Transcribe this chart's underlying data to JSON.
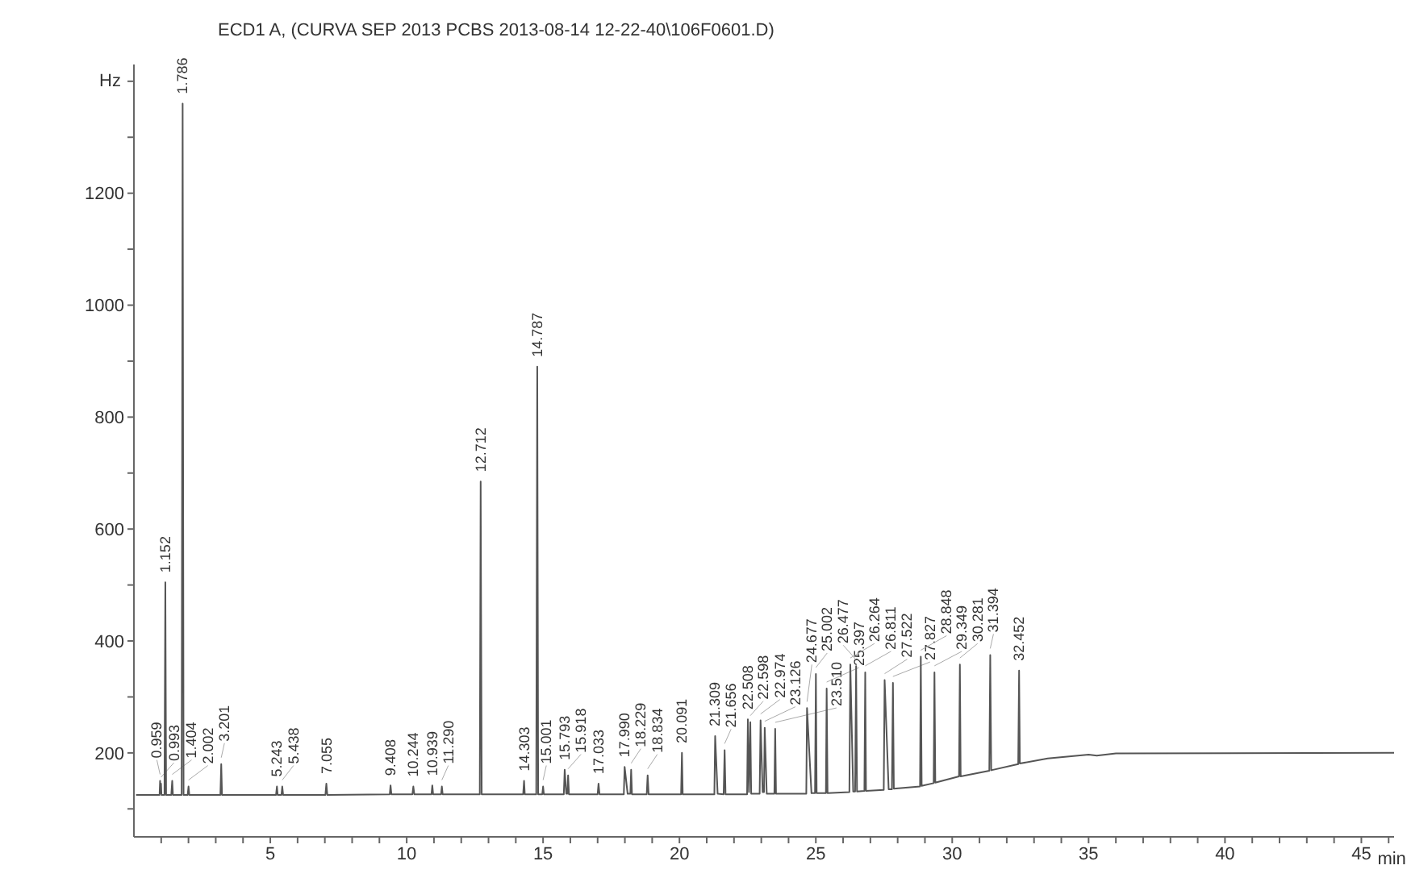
{
  "chart_data": {
    "type": "line",
    "title": "ECD1 A,  (CURVA SEP 2013 PCBS 2013-08-14 12-22-40\\106F0601.D)",
    "xlabel": "min",
    "ylabel": "Hz",
    "color": "#555555",
    "marker": "none",
    "line_style": "solid",
    "xlim": [
      0,
      46.2
    ],
    "ylim": [
      50,
      1430
    ],
    "xticks": [
      {
        "value": 1,
        "label": null
      },
      {
        "value": 2,
        "label": null
      },
      {
        "value": 3,
        "label": null
      },
      {
        "value": 4,
        "label": null
      },
      5,
      {
        "value": 6,
        "label": null
      },
      {
        "value": 7,
        "label": null
      },
      {
        "value": 8,
        "label": null
      },
      {
        "value": 9,
        "label": null
      },
      10,
      {
        "value": 11,
        "label": null
      },
      {
        "value": 12,
        "label": null
      },
      {
        "value": 13,
        "label": null
      },
      {
        "value": 14,
        "label": null
      },
      15,
      {
        "value": 16,
        "label": null
      },
      {
        "value": 17,
        "label": null
      },
      {
        "value": 18,
        "label": null
      },
      {
        "value": 19,
        "label": null
      },
      20,
      {
        "value": 21,
        "label": null
      },
      {
        "value": 22,
        "label": null
      },
      {
        "value": 23,
        "label": null
      },
      {
        "value": 24,
        "label": null
      },
      25,
      {
        "value": 26,
        "label": null
      },
      {
        "value": 27,
        "label": null
      },
      {
        "value": 28,
        "label": null
      },
      {
        "value": 29,
        "label": null
      },
      30,
      {
        "value": 31,
        "label": null
      },
      {
        "value": 32,
        "label": null
      },
      {
        "value": 33,
        "label": null
      },
      {
        "value": 34,
        "label": null
      },
      35,
      {
        "value": 36,
        "label": null
      },
      {
        "value": 37,
        "label": null
      },
      {
        "value": 38,
        "label": null
      },
      {
        "value": 39,
        "label": null
      },
      40,
      {
        "value": 41,
        "label": null
      },
      {
        "value": 42,
        "label": null
      },
      {
        "value": 43,
        "label": null
      },
      {
        "value": 44,
        "label": null
      },
      45,
      {
        "value": 46,
        "label": null
      }
    ],
    "yticks": [
      {
        "value": 100,
        "label": null
      },
      200,
      {
        "value": 300,
        "label": null
      },
      400,
      {
        "value": 500,
        "label": null
      },
      600,
      {
        "value": 700,
        "label": null
      },
      800,
      {
        "value": 900,
        "label": null
      },
      1000,
      {
        "value": 1100,
        "label": null
      },
      1200,
      {
        "value": 1300,
        "label": null
      },
      {
        "value": 1400,
        "label": null
      }
    ],
    "x": [
      0.1,
      0.94,
      0.959,
      0.976,
      0.993,
      1.01,
      1.12,
      1.152,
      1.18,
      1.37,
      1.404,
      1.43,
      1.75,
      1.786,
      1.82,
      1.97,
      2.002,
      2.03,
      3.17,
      3.201,
      3.23,
      5.21,
      5.243,
      5.27,
      5.41,
      5.438,
      5.47,
      7.02,
      7.055,
      7.09,
      9.38,
      9.408,
      9.44,
      10.21,
      10.244,
      10.28,
      10.91,
      10.939,
      10.97,
      11.26,
      11.29,
      11.32,
      12.68,
      12.712,
      12.75,
      14.27,
      14.303,
      14.33,
      14.75,
      14.787,
      14.82,
      14.97,
      15.001,
      15.03,
      15.76,
      15.793,
      15.85,
      15.89,
      15.918,
      15.95,
      17,
      17.033,
      17.07,
      17.96,
      17.99,
      18.1,
      18.2,
      18.229,
      18.26,
      18.8,
      18.834,
      18.87,
      20.06,
      20.091,
      20.12,
      21.28,
      21.309,
      21.4,
      21.62,
      21.656,
      21.69,
      22.48,
      22.508,
      22.55,
      22.598,
      22.63,
      22.94,
      22.974,
      23.05,
      23.1,
      23.126,
      23.2,
      23.48,
      23.51,
      23.54,
      24.65,
      24.677,
      24.84,
      24.97,
      25.002,
      25.03,
      25.37,
      25.397,
      25.43,
      26.23,
      26.264,
      26.37,
      26.44,
      26.477,
      26.51,
      26.78,
      26.811,
      26.84,
      27.49,
      27.522,
      27.67,
      27.79,
      27.827,
      27.86,
      28.82,
      28.848,
      28.88,
      29.32,
      29.349,
      29.38,
      30.25,
      30.281,
      30.31,
      31.36,
      31.394,
      31.43,
      32.42,
      32.452,
      32.48,
      33.5,
      35,
      35.3,
      36,
      46.2
    ],
    "values": [
      125,
      125,
      150,
      128,
      145,
      125,
      125,
      505,
      125,
      125,
      150,
      125,
      125,
      1360,
      125,
      125,
      140,
      125,
      125,
      180,
      125,
      125,
      140,
      125,
      125,
      140,
      125,
      125,
      145,
      125,
      126,
      142,
      126,
      126,
      140,
      126,
      126,
      142,
      126,
      126,
      140,
      126,
      126,
      685,
      126,
      126,
      150,
      126,
      126,
      890,
      126,
      126,
      140,
      126,
      126,
      170,
      127,
      127,
      160,
      126,
      126,
      145,
      126,
      126,
      175,
      127,
      127,
      170,
      126,
      126,
      160,
      126,
      126,
      200,
      126,
      126,
      230,
      127,
      126,
      205,
      126,
      126,
      260,
      130,
      255,
      127,
      127,
      258,
      130,
      130,
      245,
      127,
      127,
      243,
      127,
      127,
      280,
      128,
      128,
      341,
      128,
      128,
      315,
      128,
      130,
      358,
      131,
      131,
      355,
      131,
      132,
      344,
      132,
      134,
      330,
      135,
      135,
      325,
      136,
      140,
      372,
      141,
      146,
      344,
      147,
      158,
      358,
      158,
      168,
      375,
      169,
      180,
      347,
      181,
      190,
      197,
      195,
      199,
      200
    ],
    "annotations": [
      {
        "text": "0.959",
        "x": 0.959,
        "y": 150
      },
      {
        "text": "0.993",
        "x": 0.993,
        "y": 145
      },
      {
        "text": "1.152",
        "x": 1.152,
        "y": 505
      },
      {
        "text": "1.404",
        "x": 1.404,
        "y": 150
      },
      {
        "text": "1.786",
        "x": 1.786,
        "y": 1360
      },
      {
        "text": "2.002",
        "x": 2.002,
        "y": 140
      },
      {
        "text": "3.201",
        "x": 3.201,
        "y": 180
      },
      {
        "text": "5.243",
        "x": 5.243,
        "y": 140
      },
      {
        "text": "5.438",
        "x": 5.438,
        "y": 140
      },
      {
        "text": "7.055",
        "x": 7.055,
        "y": 145
      },
      {
        "text": "9.408",
        "x": 9.408,
        "y": 142
      },
      {
        "text": "10.244",
        "x": 10.244,
        "y": 140
      },
      {
        "text": "10.939",
        "x": 10.939,
        "y": 142
      },
      {
        "text": "11.290",
        "x": 11.29,
        "y": 140
      },
      {
        "text": "12.712",
        "x": 12.712,
        "y": 685
      },
      {
        "text": "14.303",
        "x": 14.303,
        "y": 150
      },
      {
        "text": "14.787",
        "x": 14.787,
        "y": 890
      },
      {
        "text": "15.001",
        "x": 15.001,
        "y": 140
      },
      {
        "text": "15.793",
        "x": 15.793,
        "y": 170
      },
      {
        "text": "15.918",
        "x": 15.918,
        "y": 160
      },
      {
        "text": "17.033",
        "x": 17.033,
        "y": 145
      },
      {
        "text": "17.990",
        "x": 17.99,
        "y": 175
      },
      {
        "text": "18.229",
        "x": 18.229,
        "y": 170
      },
      {
        "text": "18.834",
        "x": 18.834,
        "y": 160
      },
      {
        "text": "20.091",
        "x": 20.091,
        "y": 200
      },
      {
        "text": "21.309",
        "x": 21.309,
        "y": 230
      },
      {
        "text": "21.656",
        "x": 21.656,
        "y": 205
      },
      {
        "text": "22.508",
        "x": 22.508,
        "y": 260
      },
      {
        "text": "22.598",
        "x": 22.598,
        "y": 255
      },
      {
        "text": "22.974",
        "x": 22.974,
        "y": 258
      },
      {
        "text": "23.126",
        "x": 23.126,
        "y": 245
      },
      {
        "text": "23.510",
        "x": 23.51,
        "y": 243
      },
      {
        "text": "24.677",
        "x": 24.677,
        "y": 280
      },
      {
        "text": "25.002",
        "x": 25.002,
        "y": 341
      },
      {
        "text": "25.397",
        "x": 25.397,
        "y": 315
      },
      {
        "text": "26.264",
        "x": 26.264,
        "y": 358
      },
      {
        "text": "26.477",
        "x": 26.477,
        "y": 355
      },
      {
        "text": "26.811",
        "x": 26.811,
        "y": 344
      },
      {
        "text": "27.522",
        "x": 27.522,
        "y": 330
      },
      {
        "text": "27.827",
        "x": 27.827,
        "y": 325
      },
      {
        "text": "28.848",
        "x": 28.848,
        "y": 372
      },
      {
        "text": "29.349",
        "x": 29.349,
        "y": 344
      },
      {
        "text": "30.281",
        "x": 30.281,
        "y": 358
      },
      {
        "text": "31.394",
        "x": 31.394,
        "y": 375
      },
      {
        "text": "32.452",
        "x": 32.452,
        "y": 347
      }
    ]
  }
}
